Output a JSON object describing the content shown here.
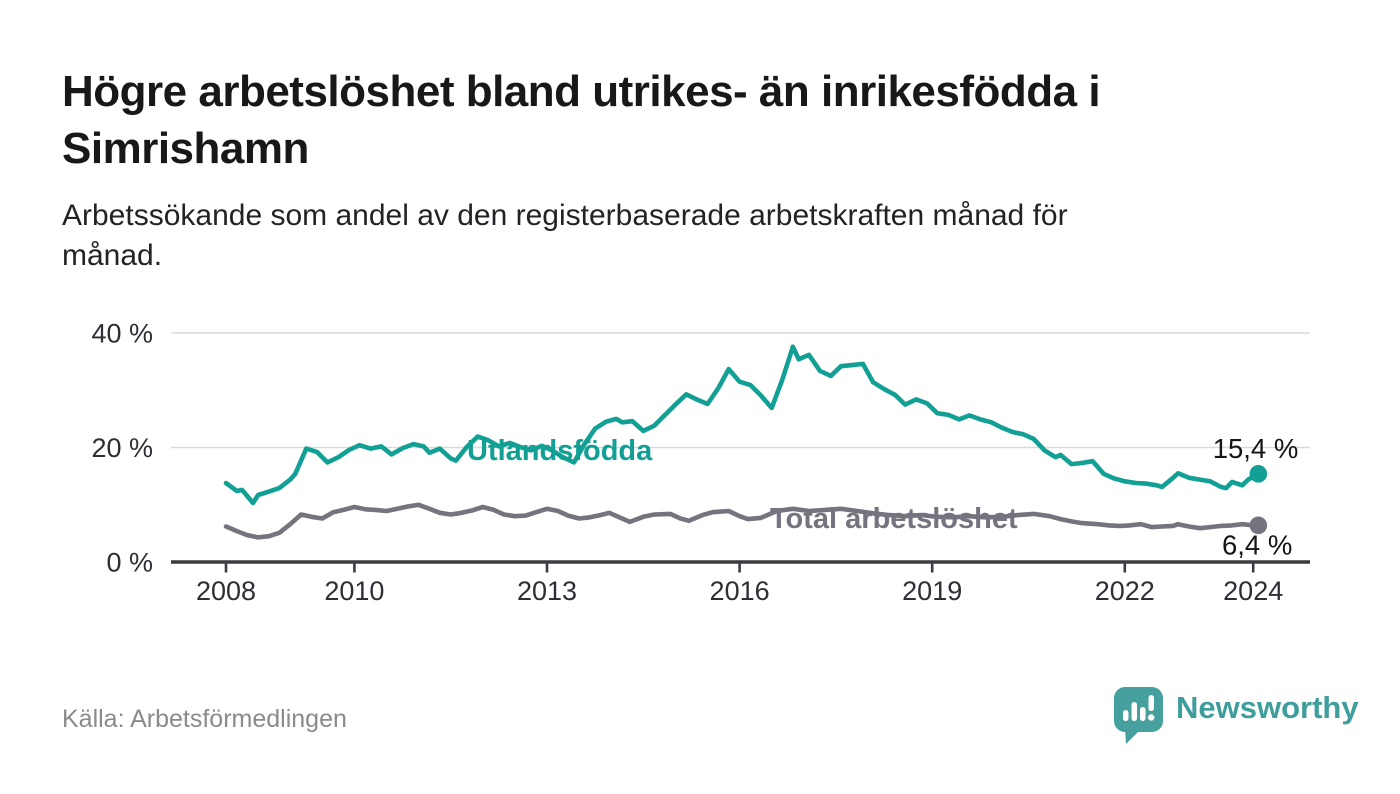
{
  "header": {
    "title_lines": [
      "Högre arbetslöshet bland utrikes- än inrikesfödda i",
      "Simrishamn"
    ],
    "subtitle_lines": [
      "Arbetssökande som andel av den registerbaserade arbetskraften månad för",
      "månad."
    ]
  },
  "footer": {
    "source": "Källa: Arbetsförmedlingen",
    "brand_name": "Newsworthy"
  },
  "colors": {
    "series_foreign_born": "#12A095",
    "series_total": "#75737E",
    "gridline": "#DADADA",
    "axis": "#3B3B41",
    "axis_text": "#2E2E36",
    "annotation_text": "#141414",
    "title_text": "#181818",
    "subtitle_text": "#222326",
    "source_text": "#8A8A8F",
    "logo_teal": "#46A09D",
    "wordmark_teal": "#3E9E9C"
  },
  "chart_data": {
    "type": "line",
    "title": "Högre arbetslöshet bland utrikes- än inrikesfödda i Simrishamn",
    "subtitle": "Arbetssökande som andel av den registerbaserade arbetskraften månad för månad.",
    "unit": "%",
    "x_axis": {
      "ticks": [
        {
          "year": 2008,
          "label": "2008"
        },
        {
          "year": 2010,
          "label": "2010"
        },
        {
          "year": 2013,
          "label": "2013"
        },
        {
          "year": 2016,
          "label": "2016"
        },
        {
          "year": 2019,
          "label": "2019"
        },
        {
          "year": 2022,
          "label": "2022"
        },
        {
          "year": 2024,
          "label": "2024"
        }
      ],
      "range": [
        2008,
        2024.2
      ]
    },
    "y_axis": {
      "ticks": [
        {
          "value": 0,
          "label": "0 %"
        },
        {
          "value": 20,
          "label": "20 %"
        },
        {
          "value": 40,
          "label": "40 %"
        }
      ],
      "range": [
        0,
        40
      ],
      "grid": true
    },
    "legend_position": "inline-labels",
    "series": [
      {
        "name": "Utlandsfödda",
        "color": "#12A095",
        "end_label": "15,4 %",
        "end_value": 15.4,
        "points": [
          [
            2008.0,
            13.8
          ],
          [
            2008.17,
            12.4
          ],
          [
            2008.25,
            12.6
          ],
          [
            2008.42,
            10.3
          ],
          [
            2008.5,
            11.7
          ],
          [
            2008.67,
            12.3
          ],
          [
            2008.83,
            12.9
          ],
          [
            2009.0,
            14.4
          ],
          [
            2009.08,
            15.4
          ],
          [
            2009.25,
            19.8
          ],
          [
            2009.42,
            19.2
          ],
          [
            2009.58,
            17.4
          ],
          [
            2009.75,
            18.3
          ],
          [
            2009.92,
            19.6
          ],
          [
            2010.08,
            20.4
          ],
          [
            2010.25,
            19.8
          ],
          [
            2010.42,
            20.2
          ],
          [
            2010.58,
            18.8
          ],
          [
            2010.75,
            19.9
          ],
          [
            2010.92,
            20.6
          ],
          [
            2011.08,
            20.2
          ],
          [
            2011.17,
            19.1
          ],
          [
            2011.33,
            19.8
          ],
          [
            2011.5,
            18.1
          ],
          [
            2011.58,
            17.7
          ],
          [
            2011.75,
            20.1
          ],
          [
            2011.92,
            21.9
          ],
          [
            2012.08,
            21.3
          ],
          [
            2012.25,
            20.2
          ],
          [
            2012.42,
            20.8
          ],
          [
            2012.58,
            20.1
          ],
          [
            2012.75,
            19.5
          ],
          [
            2012.92,
            20.3
          ],
          [
            2013.08,
            19.5
          ],
          [
            2013.25,
            18.3
          ],
          [
            2013.42,
            17.4
          ],
          [
            2013.58,
            20.5
          ],
          [
            2013.75,
            23.3
          ],
          [
            2013.92,
            24.5
          ],
          [
            2014.08,
            25.0
          ],
          [
            2014.17,
            24.4
          ],
          [
            2014.33,
            24.6
          ],
          [
            2014.5,
            22.9
          ],
          [
            2014.67,
            23.8
          ],
          [
            2014.83,
            25.6
          ],
          [
            2015.0,
            27.5
          ],
          [
            2015.17,
            29.3
          ],
          [
            2015.33,
            28.4
          ],
          [
            2015.5,
            27.6
          ],
          [
            2015.67,
            30.4
          ],
          [
            2015.83,
            33.7
          ],
          [
            2016.0,
            31.5
          ],
          [
            2016.17,
            30.9
          ],
          [
            2016.33,
            29.1
          ],
          [
            2016.5,
            26.9
          ],
          [
            2016.67,
            32.0
          ],
          [
            2016.83,
            37.6
          ],
          [
            2016.92,
            35.4
          ],
          [
            2017.08,
            36.2
          ],
          [
            2017.25,
            33.4
          ],
          [
            2017.42,
            32.5
          ],
          [
            2017.58,
            34.2
          ],
          [
            2017.75,
            34.4
          ],
          [
            2017.92,
            34.6
          ],
          [
            2018.08,
            31.4
          ],
          [
            2018.25,
            30.2
          ],
          [
            2018.42,
            29.2
          ],
          [
            2018.58,
            27.5
          ],
          [
            2018.75,
            28.4
          ],
          [
            2018.92,
            27.7
          ],
          [
            2019.08,
            26.0
          ],
          [
            2019.25,
            25.7
          ],
          [
            2019.42,
            24.9
          ],
          [
            2019.58,
            25.6
          ],
          [
            2019.75,
            24.9
          ],
          [
            2019.92,
            24.4
          ],
          [
            2020.08,
            23.5
          ],
          [
            2020.25,
            22.7
          ],
          [
            2020.42,
            22.3
          ],
          [
            2020.58,
            21.5
          ],
          [
            2020.75,
            19.5
          ],
          [
            2020.92,
            18.3
          ],
          [
            2021.0,
            18.7
          ],
          [
            2021.17,
            17.1
          ],
          [
            2021.33,
            17.3
          ],
          [
            2021.5,
            17.6
          ],
          [
            2021.67,
            15.4
          ],
          [
            2021.83,
            14.6
          ],
          [
            2022.0,
            14.1
          ],
          [
            2022.17,
            13.8
          ],
          [
            2022.33,
            13.7
          ],
          [
            2022.5,
            13.4
          ],
          [
            2022.58,
            13.1
          ],
          [
            2022.75,
            14.7
          ],
          [
            2022.83,
            15.5
          ],
          [
            2023.0,
            14.7
          ],
          [
            2023.17,
            14.4
          ],
          [
            2023.33,
            14.1
          ],
          [
            2023.5,
            13.1
          ],
          [
            2023.58,
            12.9
          ],
          [
            2023.67,
            14.0
          ],
          [
            2023.83,
            13.4
          ],
          [
            2023.92,
            14.4
          ],
          [
            2024.08,
            15.4
          ]
        ]
      },
      {
        "name": "Total arbetslöshet",
        "color": "#75737E",
        "end_label": "6,4 %",
        "end_value": 6.4,
        "points": [
          [
            2008.0,
            6.2
          ],
          [
            2008.17,
            5.4
          ],
          [
            2008.33,
            4.7
          ],
          [
            2008.5,
            4.3
          ],
          [
            2008.67,
            4.5
          ],
          [
            2008.83,
            5.1
          ],
          [
            2009.0,
            6.6
          ],
          [
            2009.17,
            8.3
          ],
          [
            2009.33,
            7.9
          ],
          [
            2009.5,
            7.6
          ],
          [
            2009.67,
            8.7
          ],
          [
            2009.83,
            9.1
          ],
          [
            2010.0,
            9.6
          ],
          [
            2010.17,
            9.2
          ],
          [
            2010.33,
            9.1
          ],
          [
            2010.5,
            8.9
          ],
          [
            2010.67,
            9.3
          ],
          [
            2010.83,
            9.7
          ],
          [
            2011.0,
            10.0
          ],
          [
            2011.17,
            9.3
          ],
          [
            2011.33,
            8.6
          ],
          [
            2011.5,
            8.3
          ],
          [
            2011.67,
            8.6
          ],
          [
            2011.83,
            9.0
          ],
          [
            2012.0,
            9.6
          ],
          [
            2012.17,
            9.1
          ],
          [
            2012.33,
            8.3
          ],
          [
            2012.5,
            8.0
          ],
          [
            2012.67,
            8.1
          ],
          [
            2012.83,
            8.7
          ],
          [
            2013.0,
            9.3
          ],
          [
            2013.17,
            8.9
          ],
          [
            2013.33,
            8.1
          ],
          [
            2013.5,
            7.6
          ],
          [
            2013.67,
            7.8
          ],
          [
            2013.83,
            8.2
          ],
          [
            2013.97,
            8.6
          ],
          [
            2014.17,
            7.6
          ],
          [
            2014.29,
            7.0
          ],
          [
            2014.5,
            7.9
          ],
          [
            2014.67,
            8.3
          ],
          [
            2014.92,
            8.4
          ],
          [
            2015.08,
            7.6
          ],
          [
            2015.21,
            7.2
          ],
          [
            2015.42,
            8.2
          ],
          [
            2015.58,
            8.7
          ],
          [
            2015.83,
            8.9
          ],
          [
            2016.0,
            8.0
          ],
          [
            2016.13,
            7.5
          ],
          [
            2016.33,
            7.7
          ],
          [
            2016.58,
            8.9
          ],
          [
            2016.83,
            9.3
          ],
          [
            2017.08,
            8.9
          ],
          [
            2017.33,
            9.1
          ],
          [
            2017.58,
            9.3
          ],
          [
            2017.83,
            8.9
          ],
          [
            2018.08,
            8.5
          ],
          [
            2018.33,
            8.2
          ],
          [
            2018.58,
            8.0
          ],
          [
            2018.83,
            8.2
          ],
          [
            2019.08,
            7.9
          ],
          [
            2019.33,
            7.8
          ],
          [
            2019.58,
            8.0
          ],
          [
            2019.83,
            7.8
          ],
          [
            2020.08,
            7.9
          ],
          [
            2020.33,
            8.2
          ],
          [
            2020.58,
            8.4
          ],
          [
            2020.83,
            8.0
          ],
          [
            2021.0,
            7.5
          ],
          [
            2021.17,
            7.1
          ],
          [
            2021.33,
            6.8
          ],
          [
            2021.58,
            6.6
          ],
          [
            2021.75,
            6.4
          ],
          [
            2021.92,
            6.3
          ],
          [
            2022.08,
            6.4
          ],
          [
            2022.25,
            6.6
          ],
          [
            2022.42,
            6.1
          ],
          [
            2022.58,
            6.2
          ],
          [
            2022.75,
            6.3
          ],
          [
            2022.83,
            6.6
          ],
          [
            2023.0,
            6.2
          ],
          [
            2023.17,
            5.9
          ],
          [
            2023.33,
            6.1
          ],
          [
            2023.5,
            6.3
          ],
          [
            2023.67,
            6.4
          ],
          [
            2023.83,
            6.6
          ],
          [
            2023.92,
            6.5
          ],
          [
            2024.08,
            6.4
          ]
        ]
      }
    ]
  }
}
